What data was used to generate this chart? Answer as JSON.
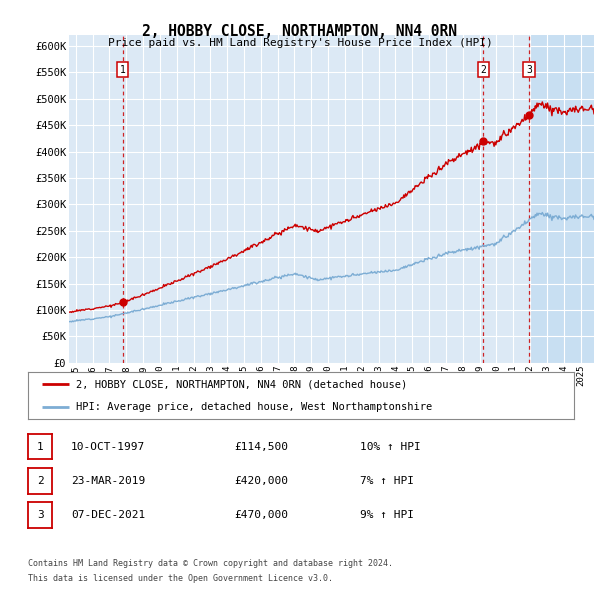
{
  "title": "2, HOBBY CLOSE, NORTHAMPTON, NN4 0RN",
  "subtitle": "Price paid vs. HM Land Registry's House Price Index (HPI)",
  "ylim": [
    0,
    620000
  ],
  "yticks": [
    0,
    50000,
    100000,
    150000,
    200000,
    250000,
    300000,
    350000,
    400000,
    450000,
    500000,
    550000,
    600000
  ],
  "xlim_start": 1994.6,
  "xlim_end": 2025.8,
  "plot_bg": "#dce9f5",
  "shade_after": 2021.93,
  "shade_color": "#c8dff2",
  "sales": [
    {
      "num": 1,
      "date": "10-OCT-1997",
      "price": 114500,
      "year": 1997.78
    },
    {
      "num": 2,
      "date": "23-MAR-2019",
      "price": 420000,
      "year": 2019.23
    },
    {
      "num": 3,
      "date": "07-DEC-2021",
      "price": 470000,
      "year": 2021.93
    }
  ],
  "legend_line1": "2, HOBBY CLOSE, NORTHAMPTON, NN4 0RN (detached house)",
  "legend_line2": "HPI: Average price, detached house, West Northamptonshire",
  "footer1": "Contains HM Land Registry data © Crown copyright and database right 2024.",
  "footer2": "This data is licensed under the Open Government Licence v3.0.",
  "red_color": "#cc0000",
  "blue_color": "#7dadd4",
  "table_rows": [
    {
      "num": 1,
      "date": "10-OCT-1997",
      "price": "£114,500",
      "hpi": "10% ↑ HPI"
    },
    {
      "num": 2,
      "date": "23-MAR-2019",
      "price": "£420,000",
      "hpi": "7% ↑ HPI"
    },
    {
      "num": 3,
      "date": "07-DEC-2021",
      "price": "£470,000",
      "hpi": "9% ↑ HPI"
    }
  ]
}
